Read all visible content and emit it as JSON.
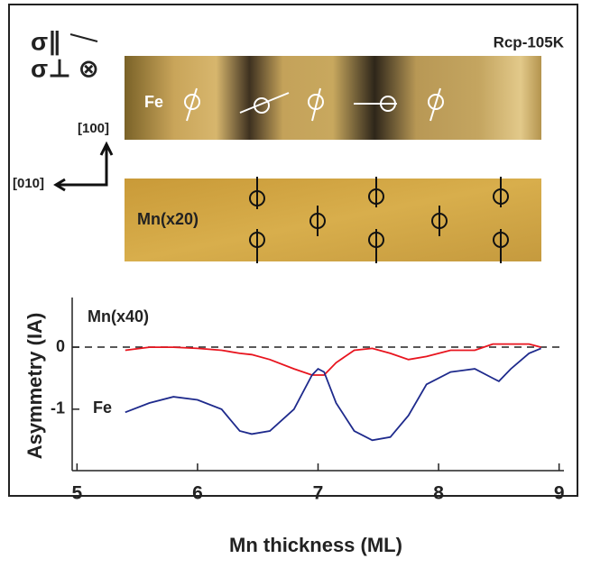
{
  "figure": {
    "sigma_parallel": "σ∥",
    "sigma_perp": "σ⊥ ⊗",
    "condition": "Rcp-105K",
    "fe_image_label": "Fe",
    "mn_image_label": "Mn(x20)",
    "axis_100": "[100]",
    "axis_010": "[010]"
  },
  "chart_data": {
    "type": "line",
    "xlabel": "Mn thickness (ML)",
    "ylabel": "Asymmetry (IA)",
    "x": [
      5.4,
      5.6,
      5.8,
      6.0,
      6.2,
      6.35,
      6.45,
      6.6,
      6.8,
      6.95,
      7.0,
      7.05,
      7.15,
      7.3,
      7.45,
      7.6,
      7.75,
      7.9,
      8.1,
      8.3,
      8.45,
      8.5,
      8.6,
      8.75,
      8.85
    ],
    "series": [
      {
        "name": "Mn(x40)",
        "color": "#e8141e",
        "values": [
          -0.05,
          0.0,
          0.0,
          -0.02,
          -0.05,
          -0.1,
          -0.12,
          -0.2,
          -0.35,
          -0.45,
          -0.45,
          -0.45,
          -0.25,
          -0.05,
          -0.02,
          -0.1,
          -0.2,
          -0.15,
          -0.05,
          -0.05,
          0.05,
          0.05,
          0.05,
          0.05,
          0.0
        ]
      },
      {
        "name": "Fe",
        "color": "#1e2a8c",
        "values": [
          -1.05,
          -0.9,
          -0.8,
          -0.85,
          -1.0,
          -1.35,
          -1.4,
          -1.35,
          -1.0,
          -0.45,
          -0.35,
          -0.4,
          -0.9,
          -1.35,
          -1.5,
          -1.45,
          -1.1,
          -0.6,
          -0.4,
          -0.35,
          -0.5,
          -0.55,
          -0.35,
          -0.1,
          -0.02
        ]
      }
    ],
    "xlim": [
      4.96,
      9.04
    ],
    "xticks": [
      5,
      6,
      7,
      8,
      9
    ],
    "ylim": [
      -1.99,
      0.8
    ],
    "yticks": [
      -1,
      0
    ],
    "reference_line": 0
  }
}
